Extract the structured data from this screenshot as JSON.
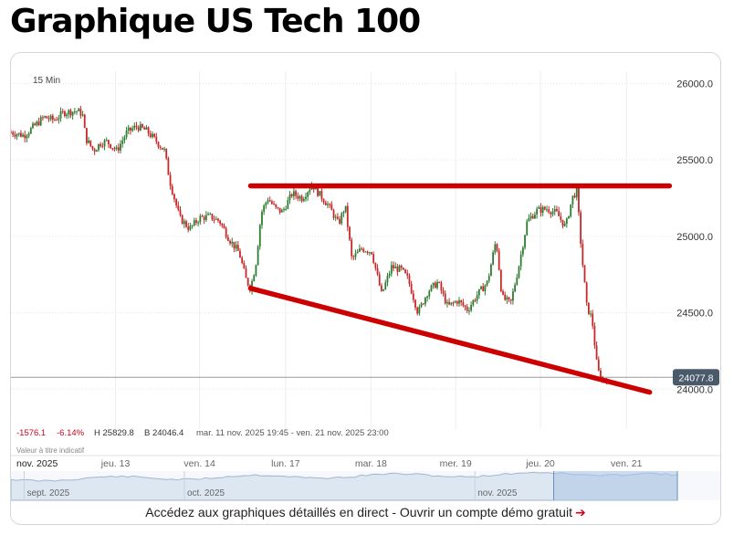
{
  "page": {
    "title": "Graphique US Tech 100",
    "cta_text": "Accédez aux graphiques détaillés en direct - Ouvrir un compte démo gratuit",
    "cta_arrow": "➔"
  },
  "chart_data": {
    "type": "candlestick",
    "interval_label": "15 Min",
    "stats": {
      "change": "-1576.1",
      "change_pct": "-6.14%",
      "high": "H 25829.8",
      "low": "B 24046.4",
      "range": "mar. 11 nov. 2025 19:45 - ven. 21 nov. 2025 23:00",
      "value_label": "Valeur à titre indicatif"
    },
    "current_price": 24077.8,
    "current_price_label": "24077.8",
    "ylim": [
      23960,
      26080
    ],
    "y_ticks": [
      {
        "value": 24000,
        "label": "24000.0"
      },
      {
        "value": 24500,
        "label": "24500.0"
      },
      {
        "value": 25000,
        "label": "25000.0"
      },
      {
        "value": 25500,
        "label": "25500.0"
      },
      {
        "value": 26000,
        "label": "26000.0"
      }
    ],
    "x_ticks": [
      {
        "pos": 0.158,
        "label": "jeu. 13"
      },
      {
        "pos": 0.285,
        "label": "ven. 14"
      },
      {
        "pos": 0.415,
        "label": "lun. 17"
      },
      {
        "pos": 0.544,
        "label": "mar. 18"
      },
      {
        "pos": 0.672,
        "label": "mer. 19"
      },
      {
        "pos": 0.8,
        "label": "jeu. 20"
      },
      {
        "pos": 0.93,
        "label": "ven. 21"
      }
    ],
    "period_label": "nov. 2025",
    "close_series": [
      {
        "t": 0.0,
        "v": 25680
      },
      {
        "t": 0.02,
        "v": 25660
      },
      {
        "t": 0.035,
        "v": 25720
      },
      {
        "t": 0.05,
        "v": 25780
      },
      {
        "t": 0.065,
        "v": 25760
      },
      {
        "t": 0.08,
        "v": 25810
      },
      {
        "t": 0.1,
        "v": 25820
      },
      {
        "t": 0.108,
        "v": 25800
      },
      {
        "t": 0.113,
        "v": 25640
      },
      {
        "t": 0.125,
        "v": 25560
      },
      {
        "t": 0.135,
        "v": 25610
      },
      {
        "t": 0.145,
        "v": 25620
      },
      {
        "t": 0.16,
        "v": 25560
      },
      {
        "t": 0.175,
        "v": 25680
      },
      {
        "t": 0.19,
        "v": 25720
      },
      {
        "t": 0.205,
        "v": 25690
      },
      {
        "t": 0.22,
        "v": 25620
      },
      {
        "t": 0.232,
        "v": 25560
      },
      {
        "t": 0.24,
        "v": 25360
      },
      {
        "t": 0.255,
        "v": 25120
      },
      {
        "t": 0.27,
        "v": 25050
      },
      {
        "t": 0.285,
        "v": 25120
      },
      {
        "t": 0.3,
        "v": 25130
      },
      {
        "t": 0.315,
        "v": 25100
      },
      {
        "t": 0.33,
        "v": 24980
      },
      {
        "t": 0.345,
        "v": 24890
      },
      {
        "t": 0.355,
        "v": 24720
      },
      {
        "t": 0.362,
        "v": 24660
      },
      {
        "t": 0.37,
        "v": 24820
      },
      {
        "t": 0.378,
        "v": 25150
      },
      {
        "t": 0.388,
        "v": 25250
      },
      {
        "t": 0.4,
        "v": 25180
      },
      {
        "t": 0.41,
        "v": 25160
      },
      {
        "t": 0.425,
        "v": 25280
      },
      {
        "t": 0.44,
        "v": 25250
      },
      {
        "t": 0.455,
        "v": 25340
      },
      {
        "t": 0.465,
        "v": 25280
      },
      {
        "t": 0.48,
        "v": 25200
      },
      {
        "t": 0.495,
        "v": 25080
      },
      {
        "t": 0.505,
        "v": 25200
      },
      {
        "t": 0.515,
        "v": 24850
      },
      {
        "t": 0.53,
        "v": 24920
      },
      {
        "t": 0.545,
        "v": 24900
      },
      {
        "t": 0.56,
        "v": 24620
      },
      {
        "t": 0.575,
        "v": 24800
      },
      {
        "t": 0.59,
        "v": 24780
      },
      {
        "t": 0.6,
        "v": 24720
      },
      {
        "t": 0.615,
        "v": 24500
      },
      {
        "t": 0.63,
        "v": 24640
      },
      {
        "t": 0.645,
        "v": 24700
      },
      {
        "t": 0.66,
        "v": 24540
      },
      {
        "t": 0.675,
        "v": 24580
      },
      {
        "t": 0.69,
        "v": 24520
      },
      {
        "t": 0.705,
        "v": 24620
      },
      {
        "t": 0.72,
        "v": 24700
      },
      {
        "t": 0.733,
        "v": 24980
      },
      {
        "t": 0.742,
        "v": 24600
      },
      {
        "t": 0.755,
        "v": 24560
      },
      {
        "t": 0.768,
        "v": 24820
      },
      {
        "t": 0.78,
        "v": 25100
      },
      {
        "t": 0.795,
        "v": 25170
      },
      {
        "t": 0.81,
        "v": 25180
      },
      {
        "t": 0.825,
        "v": 25150
      },
      {
        "t": 0.838,
        "v": 25060
      },
      {
        "t": 0.848,
        "v": 25250
      },
      {
        "t": 0.855,
        "v": 25300
      },
      {
        "t": 0.862,
        "v": 24900
      },
      {
        "t": 0.87,
        "v": 24540
      },
      {
        "t": 0.878,
        "v": 24460
      },
      {
        "t": 0.886,
        "v": 24130
      },
      {
        "t": 0.894,
        "v": 24050
      },
      {
        "t": 0.9,
        "v": 24077.8
      }
    ],
    "trendlines": [
      {
        "name": "resistance",
        "color": "#cc0000",
        "x0": 0.362,
        "y0": 25330,
        "x1": 0.995,
        "y1": 25330
      },
      {
        "name": "support",
        "color": "#cc0000",
        "x0": 0.362,
        "y0": 24660,
        "x1": 0.965,
        "y1": 23980
      }
    ],
    "navigator": {
      "months": [
        {
          "pos": 0.02,
          "label": "sept. 2025"
        },
        {
          "pos": 0.262,
          "label": "oct. 2025"
        },
        {
          "pos": 0.701,
          "label": "nov. 2025"
        }
      ],
      "selection_start": 0.82
    },
    "colors": {
      "up": "#2e7d32",
      "down": "#c62828",
      "trend": "#cc0000",
      "price_badge": "#4a5a6a",
      "accent": "#d0021b"
    }
  }
}
